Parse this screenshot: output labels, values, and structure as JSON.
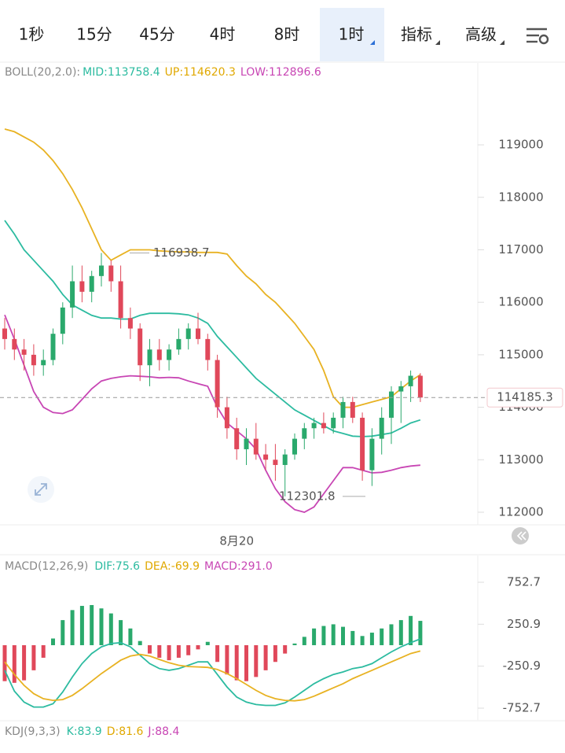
{
  "tabs": [
    {
      "label": "1秒"
    },
    {
      "label": "15分"
    },
    {
      "label": "45分"
    },
    {
      "label": "4时"
    },
    {
      "label": "8时"
    },
    {
      "label": "1时",
      "active": true,
      "menu": true
    },
    {
      "label": "指标",
      "menu": true
    },
    {
      "label": "高级",
      "menu": true
    }
  ],
  "chart_data": [
    {
      "type": "candlestick",
      "legend": {
        "title": "BOLL(20,2.0):",
        "mid": "MID:113758.4",
        "up": "UP:114620.3",
        "low": "LOW:112896.6"
      },
      "categories": [
        null,
        null,
        null,
        null,
        null,
        null,
        null,
        null,
        null,
        null,
        null,
        null,
        null,
        null,
        null,
        null,
        null,
        null,
        null,
        null,
        null,
        null,
        null,
        null,
        "8月20",
        null,
        null,
        null,
        null,
        null,
        null,
        null,
        null,
        null,
        null,
        null,
        null,
        null,
        null,
        null,
        null,
        null,
        null,
        null
      ],
      "open": [
        115500,
        115300,
        115100,
        115000,
        114800,
        114900,
        115400,
        115900,
        116400,
        116200,
        116500,
        116700,
        116400,
        115700,
        115500,
        114800,
        115100,
        114900,
        115100,
        115300,
        115500,
        115300,
        114900,
        114000,
        113600,
        113200,
        113400,
        113100,
        113000,
        112900,
        113100,
        113400,
        113600,
        113700,
        113600,
        113800,
        114100,
        113800,
        112800,
        113400,
        113800,
        114300,
        114400,
        114600
      ],
      "high": [
        115700,
        115500,
        115300,
        115200,
        115100,
        115500,
        116000,
        116700,
        116700,
        116600,
        116938.7,
        116800,
        116700,
        115900,
        115600,
        115300,
        115300,
        115200,
        115500,
        115600,
        115800,
        115400,
        115000,
        114200,
        113800,
        113600,
        113700,
        113300,
        113300,
        113200,
        113500,
        113700,
        113800,
        113900,
        113900,
        114200,
        114200,
        113900,
        113600,
        114000,
        114400,
        114500,
        114700,
        114650
      ],
      "low": [
        115100,
        114900,
        114700,
        114600,
        114600,
        114800,
        115200,
        115700,
        116000,
        116000,
        116300,
        116200,
        115500,
        115300,
        114500,
        114400,
        114700,
        114700,
        115000,
        115100,
        115200,
        114700,
        113800,
        113400,
        113000,
        112900,
        113000,
        112800,
        112600,
        112301.8,
        113000,
        113200,
        113400,
        113500,
        113500,
        113600,
        113700,
        112600,
        112500,
        113100,
        113300,
        113700,
        114100,
        114100
      ],
      "close": [
        115300,
        115100,
        115000,
        114800,
        114900,
        115400,
        115900,
        116400,
        116200,
        116500,
        116700,
        116400,
        115700,
        115500,
        114800,
        115100,
        114900,
        115100,
        115300,
        115500,
        115300,
        114900,
        114000,
        113600,
        113200,
        113400,
        113100,
        113000,
        112900,
        113100,
        113400,
        113600,
        113700,
        113600,
        113800,
        114100,
        113800,
        112800,
        113400,
        113800,
        114300,
        114400,
        114600,
        114185.3
      ],
      "up_color": "#2aa96c",
      "down_color": "#e0485a",
      "lines": [
        {
          "color": "#2cbba0",
          "values": [
            117560,
            117300,
            117000,
            116800,
            116600,
            116400,
            116150,
            115950,
            115850,
            115750,
            115700,
            115700,
            115680,
            115680,
            115750,
            115790,
            115790,
            115790,
            115780,
            115760,
            115700,
            115600,
            115350,
            115150,
            114950,
            114750,
            114550,
            114400,
            114250,
            114100,
            113950,
            113850,
            113750,
            113650,
            113550,
            113500,
            113450,
            113440,
            113450,
            113480,
            113510,
            113600,
            113700,
            113758.4
          ]
        },
        {
          "color": "#e8b222",
          "values": [
            119300,
            119250,
            119150,
            119050,
            118900,
            118700,
            118450,
            118150,
            117800,
            117400,
            117000,
            116800,
            116900,
            117000,
            117000,
            117000,
            116980,
            116970,
            116960,
            116960,
            116950,
            116950,
            116950,
            116920,
            116700,
            116500,
            116350,
            116150,
            116000,
            115800,
            115600,
            115350,
            115100,
            114700,
            114200,
            114000,
            114000,
            114050,
            114100,
            114150,
            114200,
            114350,
            114500,
            114620.3
          ]
        },
        {
          "color": "#c846b4",
          "values": [
            115760,
            115300,
            114800,
            114300,
            114000,
            113900,
            113880,
            113950,
            114150,
            114350,
            114500,
            114550,
            114580,
            114600,
            114590,
            114580,
            114560,
            114570,
            114560,
            114500,
            114450,
            114400,
            114000,
            113700,
            113550,
            113400,
            113200,
            112800,
            112450,
            112200,
            112050,
            112000,
            112100,
            112350,
            112600,
            112850,
            112850,
            112800,
            112750,
            112760,
            112800,
            112850,
            112880,
            112896.6
          ]
        }
      ],
      "ylim": [
        111760,
        120560
      ],
      "yticks": [
        112000,
        113000,
        114000,
        115000,
        116000,
        117000,
        118000,
        119000
      ],
      "current_price": 114185.3,
      "high_label": 116938.7,
      "low_label": 112301.8
    },
    {
      "type": "macd",
      "legend": {
        "title": "MACD(12,26,9)",
        "dif": "DIF:75.6",
        "dea": "DEA:-69.9",
        "macd": "MACD:291.0"
      },
      "values": [
        -430,
        -450,
        -420,
        -300,
        -150,
        80,
        300,
        420,
        470,
        480,
        440,
        380,
        300,
        200,
        50,
        -100,
        -150,
        -180,
        -150,
        -120,
        -50,
        40,
        -200,
        -350,
        -420,
        -430,
        -380,
        -300,
        -200,
        -100,
        20,
        100,
        200,
        230,
        250,
        220,
        170,
        110,
        150,
        200,
        250,
        300,
        350,
        291
      ],
      "up_color": "#2aa96c",
      "down_color": "#e0485a",
      "series": [
        {
          "color": "#2cbba0",
          "values": [
            -300,
            -550,
            -680,
            -740,
            -740,
            -700,
            -560,
            -380,
            -220,
            -100,
            -20,
            20,
            30,
            -20,
            -120,
            -220,
            -280,
            -300,
            -280,
            -240,
            -200,
            -200,
            -350,
            -500,
            -620,
            -680,
            -710,
            -720,
            -720,
            -690,
            -620,
            -540,
            -460,
            -400,
            -350,
            -320,
            -280,
            -260,
            -220,
            -150,
            -80,
            -20,
            30,
            75.6
          ]
        },
        {
          "color": "#e8b222",
          "values": [
            -200,
            -350,
            -480,
            -580,
            -640,
            -660,
            -650,
            -600,
            -520,
            -430,
            -340,
            -260,
            -180,
            -130,
            -110,
            -130,
            -170,
            -210,
            -240,
            -255,
            -260,
            -265,
            -290,
            -340,
            -400,
            -470,
            -540,
            -600,
            -640,
            -660,
            -665,
            -650,
            -610,
            -560,
            -510,
            -460,
            -400,
            -350,
            -300,
            -250,
            -200,
            -150,
            -100,
            -69.9
          ]
        }
      ],
      "ylim": [
        -894,
        1082
      ],
      "yticks": [
        752.7,
        250.9,
        -250.9,
        -752.7
      ]
    }
  ],
  "kdj_legend": {
    "title": "KDJ(9,3,3)",
    "k": "K:83.9",
    "d": "D:81.6",
    "j": "J:88.4"
  }
}
